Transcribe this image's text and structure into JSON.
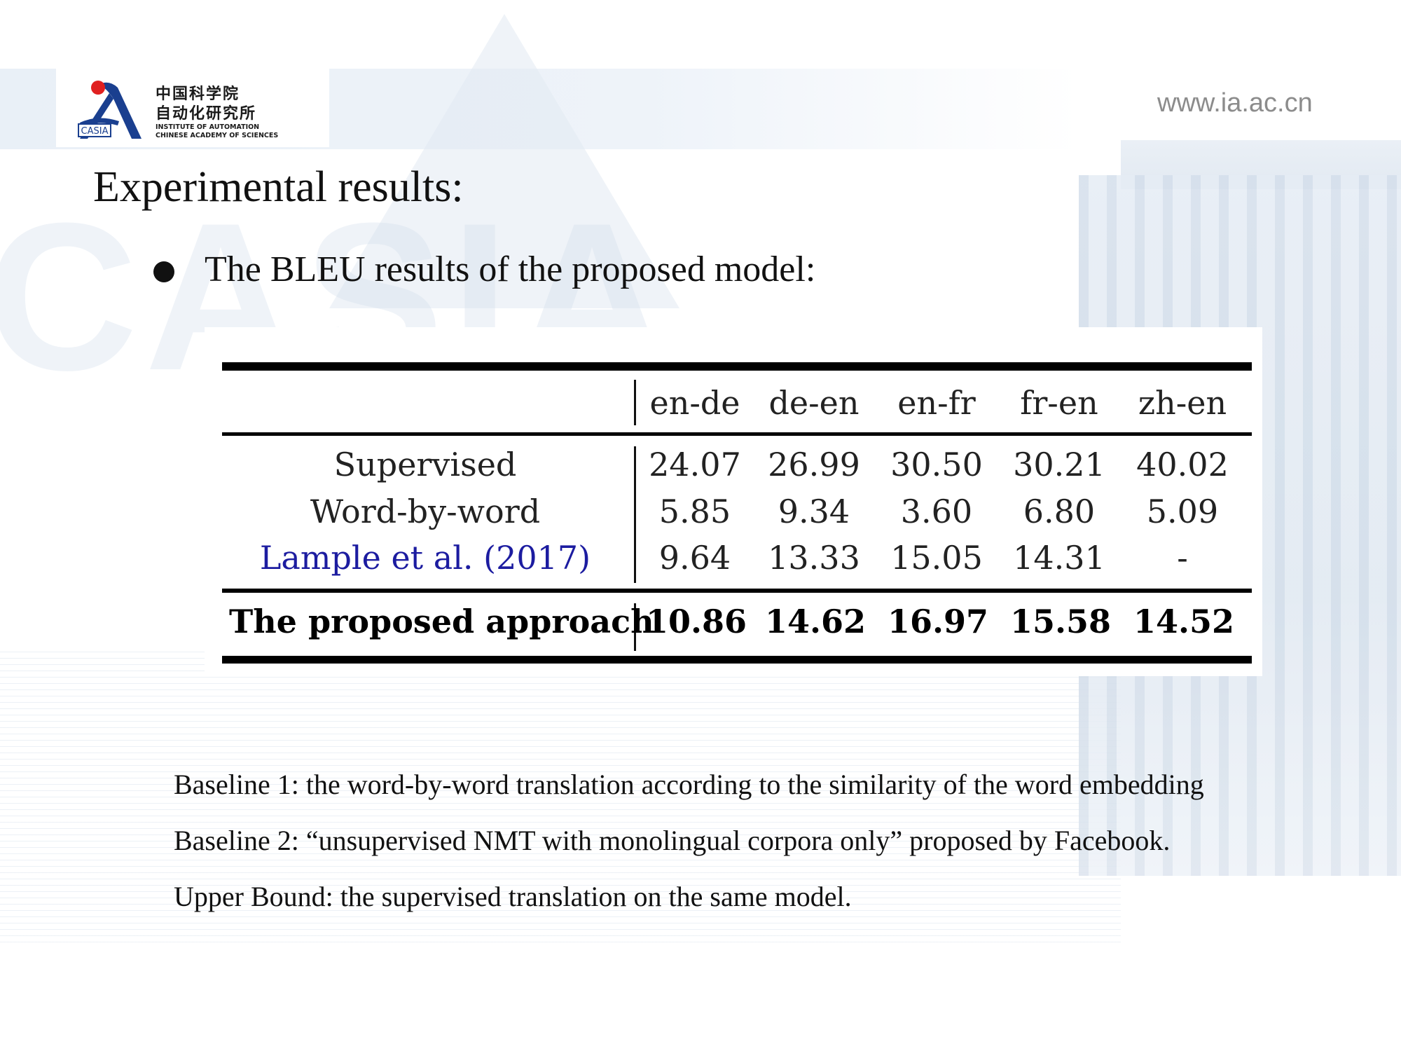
{
  "header": {
    "logo": {
      "cn_line1": "中国科学院",
      "cn_line2": "自动化研究所",
      "en_line1": "INSTITUTE OF AUTOMATION",
      "en_line2": "CHINESE ACADEMY OF SCIENCES",
      "abbr": "CASIA"
    },
    "url": "www.ia.ac.cn"
  },
  "slide": {
    "title": "Experimental results:",
    "bullet": "The BLEU results of the proposed model:"
  },
  "table": {
    "columns": [
      "en-de",
      "de-en",
      "en-fr",
      "fr-en",
      "zh-en"
    ],
    "rows": [
      {
        "label": "Supervised",
        "values": [
          "24.07",
          "26.99",
          "30.50",
          "30.21",
          "40.02"
        ]
      },
      {
        "label": "Word-by-word",
        "values": [
          "5.85",
          "9.34",
          "3.60",
          "6.80",
          "5.09"
        ]
      },
      {
        "label": "Lample et al. (2017)",
        "values": [
          "9.64",
          "13.33",
          "15.05",
          "14.31",
          "-"
        ]
      },
      {
        "label": "The proposed approach",
        "values": [
          "10.86",
          "14.62",
          "16.97",
          "15.58",
          "14.52"
        ]
      }
    ]
  },
  "notes": [
    "Baseline 1: the word-by-word translation according to the similarity of the word embedding",
    "Baseline 2: “unsupervised NMT with monolingual corpora only” proposed by Facebook.",
    "Upper Bound: the supervised translation on the same model."
  ],
  "colors": {
    "logo_blue": "#1a3f8f",
    "logo_red": "#e02020",
    "citation_blue": "#1c1ca0",
    "url_gray": "#8c8c8c"
  }
}
